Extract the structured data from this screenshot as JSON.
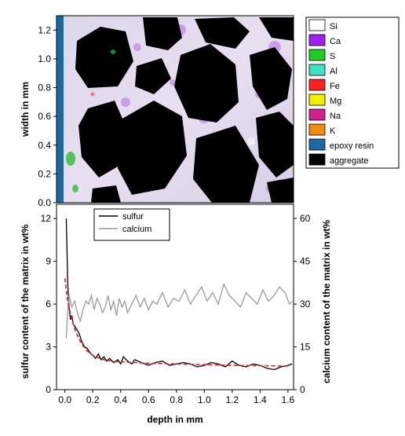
{
  "figure": {
    "top_panel": {
      "ylabel": "width in mm",
      "yticks": [
        "0.0",
        "0.2",
        "0.4",
        "0.6",
        "0.8",
        "1.0",
        "1.2"
      ],
      "legend": [
        {
          "label": "Si",
          "color": "#ffffff"
        },
        {
          "label": "Ca",
          "color": "#a020f0"
        },
        {
          "label": "S",
          "color": "#22cc22"
        },
        {
          "label": "Al",
          "color": "#40e0c0"
        },
        {
          "label": "Fe",
          "color": "#ff2020"
        },
        {
          "label": "Mg",
          "color": "#f0f000"
        },
        {
          "label": "Na",
          "color": "#d0208a"
        },
        {
          "label": "K",
          "color": "#f08c10"
        },
        {
          "label": "epoxy resin",
          "color": "#1a6aa0"
        },
        {
          "label": "aggregate",
          "color": "#000000"
        }
      ]
    },
    "bottom_panel": {
      "xlabel": "depth in mm",
      "ylabel_left": "sulfur content of the matrix in wt%",
      "ylabel_right": "calcium content of the matrix in wt%",
      "xticks": [
        "0.0",
        "0.2",
        "0.4",
        "0.6",
        "0.8",
        "1.0",
        "1.2",
        "1.4",
        "1.6"
      ],
      "yticks_left": [
        "0",
        "3",
        "6",
        "9",
        "12"
      ],
      "yticks_right": [
        "0",
        "15",
        "30",
        "45",
        "60"
      ],
      "legend": [
        {
          "label": "sulfur",
          "color": "#000000"
        },
        {
          "label": "calcium",
          "color": "#999999"
        }
      ]
    }
  },
  "chart_data": [
    {
      "type": "heatmap",
      "description_source": "EDX element map",
      "ylabel": "width in mm",
      "ylim": [
        0,
        1.3
      ],
      "classes": [
        "Si",
        "Ca",
        "S",
        "Al",
        "Fe",
        "Mg",
        "Na",
        "K",
        "epoxy resin",
        "aggregate"
      ]
    },
    {
      "type": "line",
      "xlabel": "depth in mm",
      "ylabel": "sulfur content of the matrix in wt%",
      "ylabel_right": "calcium content of the matrix in wt%",
      "xlim": [
        -0.06,
        1.64
      ],
      "ylim": [
        0,
        13
      ],
      "ylim_right": [
        0,
        65
      ],
      "series": [
        {
          "name": "sulfur",
          "axis": "left",
          "color": "#000000",
          "x": [
            0.01,
            0.015,
            0.02,
            0.03,
            0.04,
            0.05,
            0.06,
            0.08,
            0.1,
            0.12,
            0.14,
            0.16,
            0.18,
            0.2,
            0.22,
            0.24,
            0.26,
            0.28,
            0.3,
            0.32,
            0.35,
            0.38,
            0.4,
            0.42,
            0.45,
            0.48,
            0.5,
            0.55,
            0.6,
            0.65,
            0.7,
            0.75,
            0.8,
            0.85,
            0.9,
            0.95,
            1.0,
            1.05,
            1.1,
            1.15,
            1.2,
            1.25,
            1.3,
            1.35,
            1.4,
            1.45,
            1.5,
            1.55,
            1.6,
            1.63
          ],
          "values": [
            12.0,
            10.0,
            7.5,
            5.8,
            4.9,
            5.2,
            4.6,
            4.3,
            4.0,
            3.4,
            3.0,
            2.9,
            2.6,
            2.4,
            2.2,
            2.5,
            2.1,
            2.3,
            2.0,
            2.2,
            1.9,
            2.1,
            1.8,
            2.3,
            2.0,
            1.8,
            2.1,
            1.9,
            1.7,
            1.9,
            2.0,
            1.7,
            1.8,
            1.9,
            1.8,
            1.6,
            1.7,
            1.9,
            1.8,
            1.6,
            2.0,
            1.7,
            1.6,
            1.8,
            1.7,
            1.5,
            1.4,
            1.6,
            1.7,
            1.8
          ]
        },
        {
          "name": "calcium",
          "axis": "right",
          "color": "#999999",
          "x": [
            0.01,
            0.02,
            0.03,
            0.05,
            0.07,
            0.09,
            0.11,
            0.13,
            0.15,
            0.17,
            0.19,
            0.21,
            0.23,
            0.25,
            0.27,
            0.29,
            0.31,
            0.33,
            0.35,
            0.37,
            0.39,
            0.41,
            0.43,
            0.45,
            0.48,
            0.51,
            0.54,
            0.57,
            0.6,
            0.63,
            0.66,
            0.7,
            0.74,
            0.78,
            0.82,
            0.86,
            0.9,
            0.94,
            0.98,
            1.02,
            1.06,
            1.1,
            1.14,
            1.18,
            1.22,
            1.26,
            1.3,
            1.34,
            1.38,
            1.42,
            1.46,
            1.5,
            1.54,
            1.58,
            1.61,
            1.63
          ],
          "values": [
            18,
            27,
            33,
            29,
            31,
            27,
            24,
            28,
            31,
            30,
            33,
            28,
            32,
            30,
            27,
            29,
            33,
            28,
            31,
            26,
            32,
            29,
            31,
            27,
            30,
            33,
            29,
            32,
            28,
            31,
            30,
            34,
            29,
            32,
            31,
            35,
            30,
            33,
            36,
            31,
            34,
            30,
            37,
            33,
            31,
            29,
            34,
            32,
            30,
            35,
            31,
            33,
            36,
            34,
            30,
            31
          ]
        },
        {
          "name": "",
          "axis": "left",
          "color": "#dd2222",
          "style": "dashed",
          "x": [
            0.0,
            0.02,
            0.05,
            0.08,
            0.12,
            0.16,
            0.2,
            0.25,
            0.3,
            0.4,
            0.5,
            0.6,
            0.8,
            1.0,
            1.2,
            1.4,
            1.6
          ],
          "values": [
            7.8,
            6.2,
            4.9,
            4.0,
            3.2,
            2.7,
            2.4,
            2.2,
            2.05,
            1.95,
            1.9,
            1.85,
            1.8,
            1.75,
            1.7,
            1.68,
            1.66
          ]
        }
      ]
    }
  ]
}
